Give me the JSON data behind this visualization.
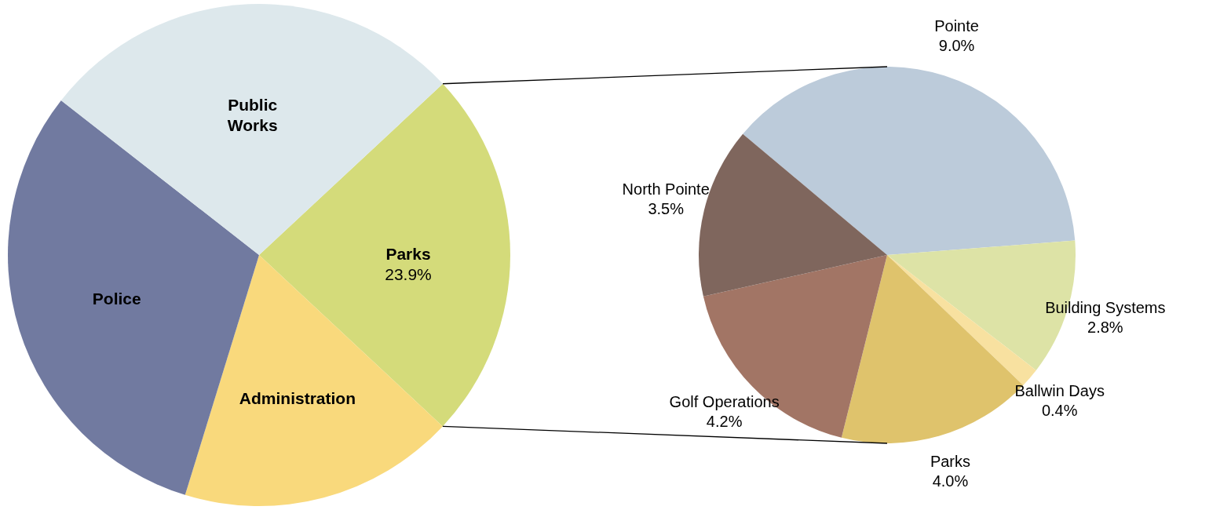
{
  "chart_data": [
    {
      "type": "pie",
      "categories": [
        "Parks",
        "Administration",
        "Police",
        "Public Works"
      ],
      "values": [
        23.9,
        17.8,
        30.8,
        27.5
      ],
      "colors": [
        "#d4db7a",
        "#f9d97c",
        "#717aa0",
        "#dde8ec"
      ],
      "value_labels": [
        "23.9%",
        null,
        null,
        null
      ]
    },
    {
      "type": "pie",
      "categories": [
        "Pointe",
        "Building Systems",
        "Ballwin Days",
        "Parks",
        "Golf Operations",
        "North Pointe"
      ],
      "values": [
        9.0,
        2.8,
        0.4,
        4.0,
        4.2,
        3.5
      ],
      "colors": [
        "#bccbda",
        "#dde3a6",
        "#f8e1a0",
        "#dfc36c",
        "#a27565",
        "#7f665d"
      ],
      "value_labels": [
        "9.0%",
        "2.8%",
        "0.4%",
        "4.0%",
        "4.2%",
        "3.5%"
      ]
    }
  ]
}
